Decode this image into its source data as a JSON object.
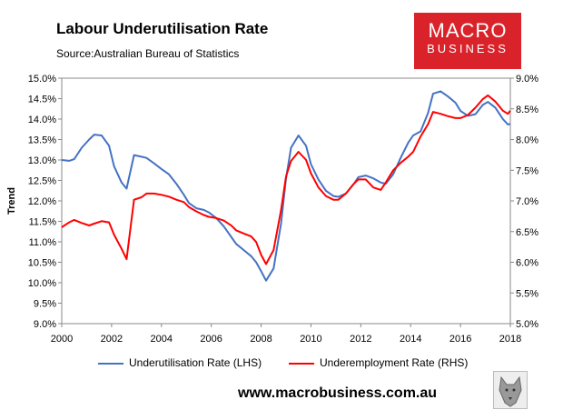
{
  "header": {
    "title": "Labour Underutilisation Rate",
    "source": "Source:Australian Bureau of Statistics"
  },
  "logo": {
    "line1": "MACRO",
    "line2": "BUSINESS"
  },
  "footer": {
    "url": "www.macrobusiness.com.au"
  },
  "chart_data": {
    "type": "line",
    "title": "Labour Underutilisation Rate",
    "ylabel": "Trend",
    "xlim": [
      2000,
      2018
    ],
    "ylim_left": [
      9.0,
      15.0
    ],
    "ylim_right": [
      5.0,
      9.0
    ],
    "x_ticks": [
      "2000",
      "2002",
      "2004",
      "2006",
      "2008",
      "2010",
      "2012",
      "2014",
      "2016",
      "2018"
    ],
    "y_ticks_left": [
      "9.0%",
      "9.5%",
      "10.0%",
      "10.5%",
      "11.0%",
      "11.5%",
      "12.0%",
      "12.5%",
      "13.0%",
      "13.5%",
      "14.0%",
      "14.5%",
      "15.0%"
    ],
    "y_ticks_right": [
      "5.0%",
      "5.5%",
      "6.0%",
      "6.5%",
      "7.0%",
      "7.5%",
      "8.0%",
      "8.5%",
      "9.0%"
    ],
    "series": [
      {
        "name": "Underutilisation Rate (LHS)",
        "axis": "left",
        "color": "#4472c4",
        "x": [
          2000.0,
          2000.3,
          2000.5,
          2000.8,
          2001.1,
          2001.3,
          2001.6,
          2001.9,
          2002.1,
          2002.4,
          2002.6,
          2002.9,
          2003.2,
          2003.4,
          2003.7,
          2004.0,
          2004.3,
          2004.6,
          2004.9,
          2005.1,
          2005.4,
          2005.7,
          2005.9,
          2006.2,
          2006.5,
          2006.8,
          2007.0,
          2007.3,
          2007.6,
          2007.8,
          2008.0,
          2008.2,
          2008.5,
          2008.8,
          2009.0,
          2009.2,
          2009.5,
          2009.8,
          2010.0,
          2010.3,
          2010.6,
          2010.9,
          2011.1,
          2011.4,
          2011.7,
          2011.9,
          2012.2,
          2012.5,
          2012.8,
          2013.0,
          2013.3,
          2013.6,
          2013.9,
          2014.1,
          2014.4,
          2014.7,
          2014.9,
          2015.2,
          2015.5,
          2015.8,
          2016.0,
          2016.3,
          2016.6,
          2016.9,
          2017.1,
          2017.4,
          2017.7,
          2017.9
        ],
        "values": [
          13.0,
          12.98,
          13.02,
          13.3,
          13.5,
          13.62,
          13.6,
          13.35,
          12.85,
          12.45,
          12.3,
          13.12,
          13.08,
          13.05,
          12.92,
          12.78,
          12.65,
          12.42,
          12.15,
          11.95,
          11.82,
          11.78,
          11.72,
          11.58,
          11.38,
          11.12,
          10.95,
          10.8,
          10.65,
          10.5,
          10.28,
          10.05,
          10.35,
          11.45,
          12.55,
          13.3,
          13.6,
          13.35,
          12.9,
          12.52,
          12.25,
          12.12,
          12.1,
          12.18,
          12.4,
          12.58,
          12.62,
          12.55,
          12.45,
          12.42,
          12.65,
          13.05,
          13.42,
          13.6,
          13.7,
          14.15,
          14.62,
          14.68,
          14.55,
          14.4,
          14.2,
          14.08,
          14.12,
          14.35,
          14.42,
          14.28,
          14.0,
          13.87
        ],
        "x_end": 2018.0,
        "value_end": 13.88
      },
      {
        "name": "Underemployment Rate (RHS)",
        "axis": "right",
        "color": "#ff0000",
        "x": [
          2000.0,
          2000.3,
          2000.5,
          2000.8,
          2001.1,
          2001.3,
          2001.6,
          2001.9,
          2002.1,
          2002.4,
          2002.6,
          2002.9,
          2003.2,
          2003.4,
          2003.7,
          2004.0,
          2004.3,
          2004.6,
          2004.9,
          2005.1,
          2005.4,
          2005.7,
          2005.9,
          2006.2,
          2006.5,
          2006.8,
          2007.0,
          2007.3,
          2007.6,
          2007.8,
          2008.0,
          2008.2,
          2008.5,
          2008.8,
          2009.0,
          2009.2,
          2009.5,
          2009.8,
          2010.0,
          2010.3,
          2010.6,
          2010.9,
          2011.1,
          2011.4,
          2011.7,
          2011.9,
          2012.2,
          2012.5,
          2012.8,
          2013.0,
          2013.3,
          2013.6,
          2013.9,
          2014.1,
          2014.4,
          2014.7,
          2014.9,
          2015.2,
          2015.5,
          2015.8,
          2016.0,
          2016.3,
          2016.6,
          2016.9,
          2017.1,
          2017.4,
          2017.7,
          2017.9
        ],
        "values": [
          6.57,
          6.65,
          6.69,
          6.64,
          6.6,
          6.63,
          6.67,
          6.65,
          6.45,
          6.22,
          6.05,
          7.02,
          7.06,
          7.12,
          7.12,
          7.1,
          7.07,
          7.02,
          6.98,
          6.9,
          6.83,
          6.77,
          6.74,
          6.72,
          6.68,
          6.6,
          6.52,
          6.47,
          6.42,
          6.33,
          6.12,
          5.97,
          6.2,
          6.85,
          7.4,
          7.65,
          7.8,
          7.67,
          7.45,
          7.22,
          7.08,
          7.02,
          7.02,
          7.12,
          7.27,
          7.35,
          7.35,
          7.22,
          7.18,
          7.3,
          7.5,
          7.62,
          7.72,
          7.8,
          8.05,
          8.25,
          8.45,
          8.42,
          8.38,
          8.35,
          8.35,
          8.4,
          8.52,
          8.66,
          8.72,
          8.62,
          8.47,
          8.42
        ],
        "x_end": 2018.0,
        "value_end": 8.47
      }
    ],
    "legend": [
      "Underutilisation Rate (LHS)",
      "Underemployment Rate (RHS)"
    ],
    "legend_position": "bottom",
    "grid": false
  }
}
